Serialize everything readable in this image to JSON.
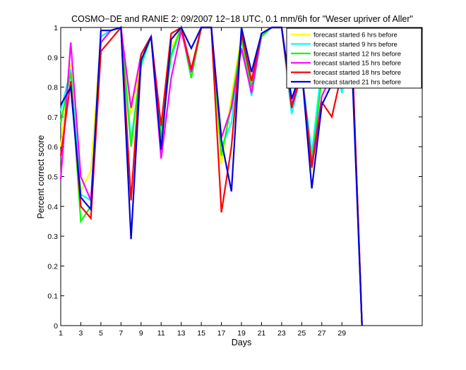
{
  "chart_data": {
    "type": "line",
    "title": "COSMO−DE and RANIE 2: 09/2007 12−18 UTC, 0.1 mm/6h for \"Weser upriver of Aller\"",
    "xlabel": "Days",
    "ylabel": "Percent correct score",
    "xlim": [
      1,
      37
    ],
    "ylim": [
      0,
      1
    ],
    "xticks": [
      1,
      3,
      5,
      7,
      9,
      11,
      13,
      15,
      17,
      19,
      21,
      23,
      25,
      27,
      29
    ],
    "yticks": [
      0,
      0.1,
      0.2,
      0.3,
      0.4,
      0.5,
      0.6,
      0.7,
      0.8,
      0.9,
      1
    ],
    "ytick_labels": [
      "0",
      "0.1",
      "0.2",
      "0.3",
      "0.4",
      "0.5",
      "0.6",
      "0.7",
      "0.8",
      "0.9",
      "1"
    ],
    "grid": false,
    "legend_position": "top-right",
    "x": [
      1,
      2,
      3,
      4,
      5,
      6,
      7,
      8,
      9,
      10,
      11,
      12,
      13,
      14,
      15,
      16,
      17,
      18,
      19,
      20,
      21,
      22,
      23,
      24,
      25,
      26,
      27,
      28,
      29,
      30,
      31
    ],
    "series": [
      {
        "name": "forecast started 6 hrs before",
        "color": "#ffff00",
        "values": [
          0.6,
          0.88,
          0.45,
          0.52,
          0.97,
          0.99,
          1.0,
          0.71,
          0.88,
          0.97,
          0.62,
          0.93,
          1.0,
          0.86,
          1.0,
          1.0,
          0.54,
          0.77,
          0.97,
          0.82,
          0.97,
          1.0,
          1.0,
          0.74,
          0.85,
          0.52,
          0.87,
          0.87,
          0.82,
          0.93,
          0.0
        ]
      },
      {
        "name": "forecast started 9 hrs before",
        "color": "#00ffff",
        "values": [
          0.72,
          0.86,
          0.44,
          0.42,
          0.97,
          0.99,
          1.0,
          0.62,
          0.87,
          0.97,
          0.66,
          0.9,
          1.0,
          0.86,
          1.0,
          1.0,
          0.6,
          0.68,
          0.97,
          0.77,
          0.97,
          1.0,
          1.0,
          0.71,
          0.85,
          0.58,
          0.87,
          0.94,
          0.78,
          0.93,
          0.0
        ]
      },
      {
        "name": "forecast started 12 hrs before",
        "color": "#00ff00",
        "values": [
          0.68,
          0.85,
          0.35,
          0.4,
          0.95,
          0.99,
          1.0,
          0.6,
          0.88,
          0.97,
          0.63,
          0.91,
          1.0,
          0.83,
          1.0,
          1.0,
          0.57,
          0.74,
          0.96,
          0.8,
          0.97,
          1.0,
          1.0,
          0.74,
          0.85,
          0.55,
          0.83,
          0.86,
          0.85,
          0.93,
          0.0
        ]
      },
      {
        "name": "forecast started 15 hrs before",
        "color": "#ff00ff",
        "values": [
          0.49,
          0.95,
          0.5,
          0.42,
          0.95,
          0.99,
          1.0,
          0.73,
          0.91,
          0.97,
          0.56,
          0.83,
          0.99,
          0.85,
          1.0,
          1.0,
          0.63,
          0.73,
          0.93,
          0.78,
          0.98,
          1.0,
          1.0,
          0.74,
          0.85,
          0.54,
          0.77,
          0.84,
          0.84,
          0.92,
          0.0
        ]
      },
      {
        "name": "forecast started 18 hrs before",
        "color": "#ff0000",
        "values": [
          0.57,
          0.82,
          0.4,
          0.36,
          0.92,
          0.96,
          1.0,
          0.42,
          0.91,
          0.97,
          0.67,
          0.98,
          1.0,
          0.86,
          1.0,
          1.0,
          0.38,
          0.6,
          0.98,
          0.82,
          0.98,
          1.0,
          1.0,
          0.73,
          0.85,
          0.53,
          0.75,
          0.7,
          0.85,
          0.94,
          0.0
        ]
      },
      {
        "name": "forecast started 21 hrs before",
        "color": "#0000dd",
        "values": [
          0.74,
          0.8,
          0.43,
          0.39,
          0.99,
          0.99,
          1.0,
          0.29,
          0.89,
          0.97,
          0.59,
          0.96,
          1.0,
          0.93,
          1.0,
          1.0,
          0.62,
          0.45,
          1.0,
          0.85,
          0.98,
          1.0,
          1.0,
          0.76,
          0.86,
          0.46,
          0.74,
          0.81,
          0.82,
          0.88,
          0.0
        ]
      }
    ]
  }
}
